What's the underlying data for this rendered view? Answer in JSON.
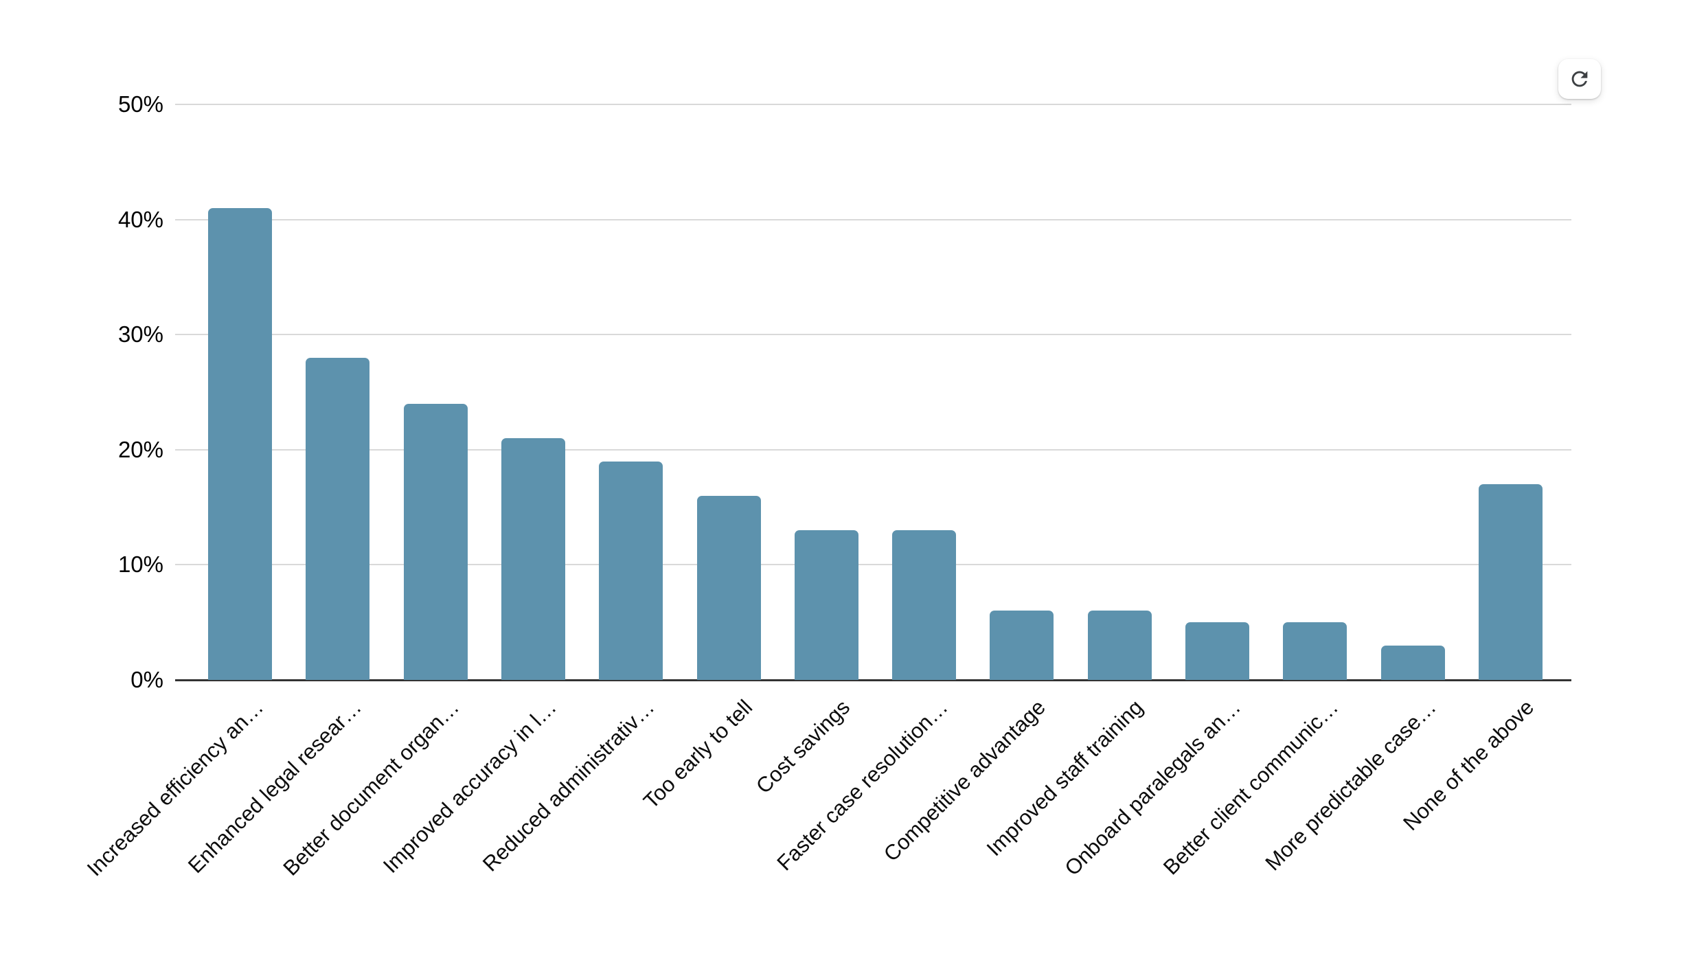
{
  "chart_data": {
    "type": "bar",
    "categories": [
      "Increased efficiency an…",
      "Enhanced legal resear…",
      "Better document organ…",
      "Improved accuracy in l…",
      "Reduced administrativ…",
      "Too early to tell",
      "Cost savings",
      "Faster case resolution…",
      "Competitive advantage",
      "Improved staff training",
      "Onboard paralegals an…",
      "Better client communic…",
      "More predictable case…",
      "None of the above"
    ],
    "values": [
      41,
      28,
      24,
      21,
      19,
      16,
      13,
      13,
      6,
      6,
      5,
      5,
      3,
      17
    ],
    "value_unit": "%",
    "y_ticks": [
      {
        "label": "0%",
        "value": 0
      },
      {
        "label": "10%",
        "value": 10
      },
      {
        "label": "20%",
        "value": 20
      },
      {
        "label": "30%",
        "value": 30
      },
      {
        "label": "40%",
        "value": 40
      },
      {
        "label": "50%",
        "value": 50
      }
    ],
    "ylim": [
      0,
      50
    ],
    "grid": true,
    "legend": null,
    "title": "",
    "xlabel": "",
    "ylabel": "",
    "x_label_rotation_deg": -45,
    "colors": {
      "bar": "#5d92ad",
      "gridline": "#d9d9d9",
      "axis_line": "#333333",
      "text": "#000000",
      "background": "#ffffff"
    }
  },
  "toolbar": {
    "refresh_icon": "refresh"
  }
}
